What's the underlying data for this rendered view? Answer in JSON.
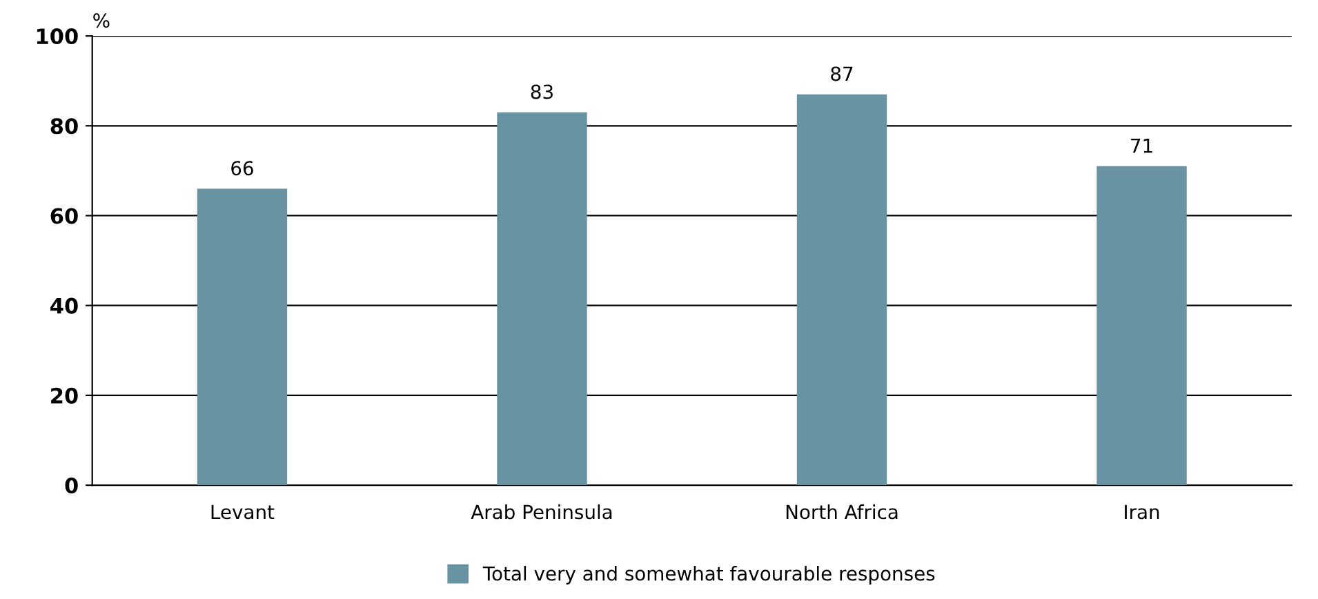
{
  "chart_data": {
    "type": "bar",
    "ylabel": "%",
    "categories": [
      "Levant",
      "Arab Peninsula",
      "North Africa",
      "Iran"
    ],
    "series": [
      {
        "name": "Total very and somewhat favourable responses",
        "color": "#6893a3",
        "values": [
          66,
          83,
          87,
          71
        ]
      }
    ],
    "ylim": [
      0,
      100
    ],
    "yticks": [
      0,
      20,
      40,
      60,
      80,
      100
    ],
    "grid": "y",
    "legend": "bottom",
    "data_labels": true
  }
}
